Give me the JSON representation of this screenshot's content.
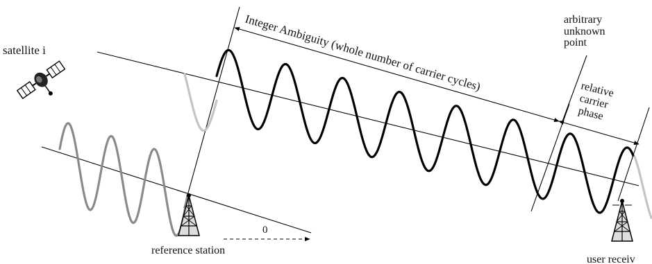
{
  "labels": {
    "satellite": "satellite i",
    "integer_ambiguity": "Integer Ambiguity (whole number of carrier cycles)",
    "arbitrary_point": [
      "arbitrary",
      "unknown",
      "point"
    ],
    "relative_phase": [
      "relative",
      "carrier",
      "phase"
    ],
    "zero": "0",
    "reference_station": "reference station",
    "user_receiver": "user receiv"
  },
  "colors": {
    "signal": "#000000",
    "reference_signal": "#8a8a8a",
    "faded_signal": "#c4c4c4"
  },
  "icons": {
    "satellite": "satellite-icon",
    "reference_antenna": "antenna-tower-icon",
    "user_antenna": "antenna-tower-icon"
  }
}
